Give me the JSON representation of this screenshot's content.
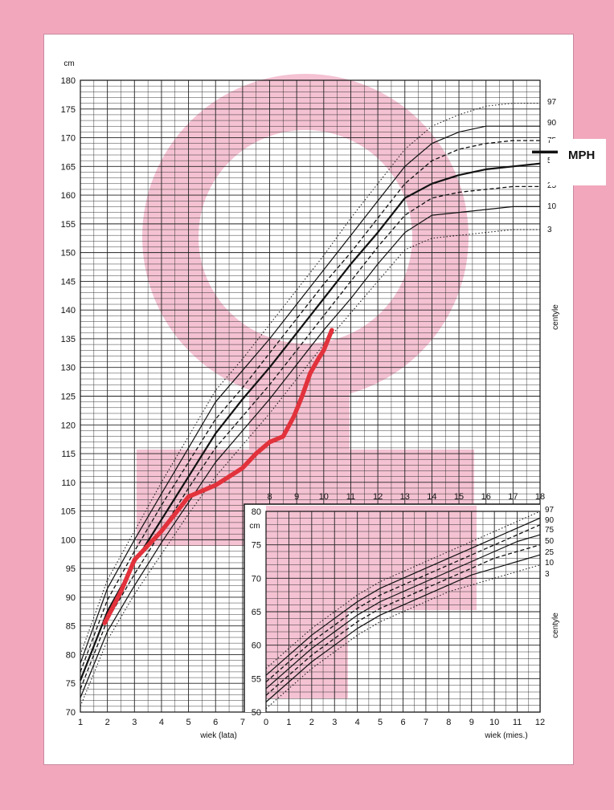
{
  "chart_data": [
    {
      "type": "line",
      "title": "",
      "ylabel": "cm",
      "xlabel": "wiek (lata)",
      "xlim": [
        1,
        18
      ],
      "ylim": [
        70,
        180
      ],
      "x_ticks": [
        1,
        2,
        3,
        4,
        5,
        6,
        7,
        8,
        9,
        10,
        11,
        12,
        13,
        14,
        15,
        16,
        17,
        18
      ],
      "y_ticks": [
        70,
        75,
        80,
        85,
        90,
        95,
        100,
        105,
        110,
        115,
        120,
        125,
        130,
        135,
        140,
        145,
        150,
        155,
        160,
        165,
        170,
        175,
        180
      ],
      "centile_axis_label": "centyle",
      "centile_labels": [
        "97",
        "90",
        "75",
        "50",
        "25",
        "10",
        "3"
      ],
      "x": [
        1,
        2,
        3,
        4,
        5,
        6,
        7,
        8,
        9,
        10,
        11,
        12,
        13,
        14,
        15,
        16,
        17,
        18
      ],
      "series": [
        {
          "name": "97",
          "style": "dotted",
          "values": [
            80,
            93,
            101.5,
            110,
            118,
            126,
            131.5,
            137.5,
            143.5,
            149.5,
            156,
            162,
            168,
            172,
            174,
            175.5,
            176,
            176
          ]
        },
        {
          "name": "90",
          "style": "solid",
          "values": [
            78.5,
            91.5,
            100,
            108,
            116,
            124,
            129.5,
            135,
            141,
            147,
            153,
            159,
            165,
            169,
            171,
            172,
            172,
            172
          ]
        },
        {
          "name": "75",
          "style": "dashed",
          "values": [
            77,
            89.5,
            98,
            106,
            113.5,
            121,
            126.5,
            132.5,
            138.5,
            144.5,
            150,
            156,
            162,
            166,
            168,
            169,
            169.5,
            169.5
          ]
        },
        {
          "name": "50",
          "style": "bold",
          "values": [
            75.5,
            87.5,
            96,
            103.5,
            111,
            118.5,
            124.5,
            130,
            136,
            142,
            148,
            153.5,
            159.5,
            162,
            163.5,
            164.5,
            165,
            165.5
          ]
        },
        {
          "name": "25",
          "style": "dashed",
          "values": [
            74,
            86,
            94,
            101.5,
            109,
            116,
            121.5,
            127,
            133,
            139,
            145,
            151,
            156.5,
            159.5,
            160.5,
            161,
            161.5,
            161.5
          ]
        },
        {
          "name": "10",
          "style": "solid",
          "values": [
            72.5,
            84,
            92,
            99.5,
            106.5,
            113.5,
            119,
            124.5,
            130.5,
            136.5,
            142,
            148,
            153.5,
            156.5,
            157,
            157.5,
            158,
            158
          ]
        },
        {
          "name": "3",
          "style": "dotted",
          "values": [
            71,
            82.5,
            90.5,
            97.5,
            104.5,
            111,
            116.5,
            122,
            128,
            134,
            139.5,
            145,
            150.5,
            152.5,
            153,
            153.5,
            154,
            154
          ]
        }
      ],
      "patient_curve": {
        "color": "#e2323c",
        "x": [
          1.9,
          2.5,
          3.0,
          3.5,
          4.0,
          4.5,
          5.0,
          5.5,
          6.0,
          6.5,
          7.0,
          7.5,
          8.0,
          8.5,
          8.9,
          9.2,
          9.5,
          9.8,
          10.0,
          10.3
        ],
        "y": [
          85.5,
          91,
          96.5,
          99,
          101.5,
          104.5,
          107.5,
          108.5,
          109.5,
          111,
          112.5,
          115,
          117,
          118,
          121.5,
          125,
          129,
          131.5,
          133,
          136.5
        ]
      },
      "mph": {
        "label": "MPH",
        "value": 167.5
      }
    },
    {
      "type": "line",
      "title": "",
      "ylabel": "cm",
      "xlabel": "wiek (mies.)",
      "xlim": [
        0,
        12
      ],
      "ylim": [
        50,
        80
      ],
      "x_ticks": [
        0,
        1,
        2,
        3,
        4,
        5,
        6,
        7,
        8,
        9,
        10,
        11,
        12
      ],
      "y_ticks": [
        50,
        55,
        60,
        65,
        70,
        75,
        80
      ],
      "centile_axis_label": "centyle",
      "centile_labels": [
        "97",
        "90",
        "75",
        "50",
        "25",
        "10",
        "3"
      ],
      "x": [
        0,
        1,
        2,
        3,
        4,
        5,
        6,
        7,
        8,
        9,
        10,
        11,
        12
      ],
      "series": [
        {
          "name": "97",
          "style": "dotted",
          "values": [
            56.5,
            59.5,
            62.5,
            65,
            67.5,
            69.5,
            71,
            72.5,
            74,
            75.5,
            77,
            78.5,
            80
          ]
        },
        {
          "name": "90",
          "style": "solid",
          "values": [
            55.5,
            58.5,
            61.5,
            64,
            66.5,
            68.5,
            70,
            71.5,
            73,
            74.5,
            76,
            77.5,
            79
          ]
        },
        {
          "name": "75",
          "style": "dashed",
          "values": [
            54.5,
            57.5,
            60.5,
            63,
            65.5,
            67.5,
            69,
            70.5,
            72,
            73.5,
            75,
            76.5,
            78
          ]
        },
        {
          "name": "50",
          "style": "solid",
          "values": [
            53.5,
            56.5,
            59.5,
            62,
            64.5,
            66.5,
            68,
            69.5,
            71,
            72.5,
            74,
            75.5,
            76.5
          ]
        },
        {
          "name": "25",
          "style": "dashed",
          "values": [
            52.5,
            55.5,
            58.5,
            61,
            63.5,
            65.5,
            67,
            68.5,
            70,
            71.5,
            73,
            74,
            75
          ]
        },
        {
          "name": "10",
          "style": "solid",
          "values": [
            51.5,
            54.5,
            57.5,
            60,
            62.5,
            64.5,
            66,
            67.5,
            69,
            70.5,
            71.5,
            72.5,
            73.5
          ]
        },
        {
          "name": "3",
          "style": "dotted",
          "values": [
            50.5,
            53.5,
            56.5,
            59,
            61.5,
            63.5,
            65,
            66.5,
            68,
            69,
            70,
            71,
            72
          ]
        }
      ]
    }
  ],
  "colors": {
    "background": "#f2a7bd",
    "watermark": "#f4c2d2",
    "patient": "#e2323c",
    "grid": "#222222"
  }
}
